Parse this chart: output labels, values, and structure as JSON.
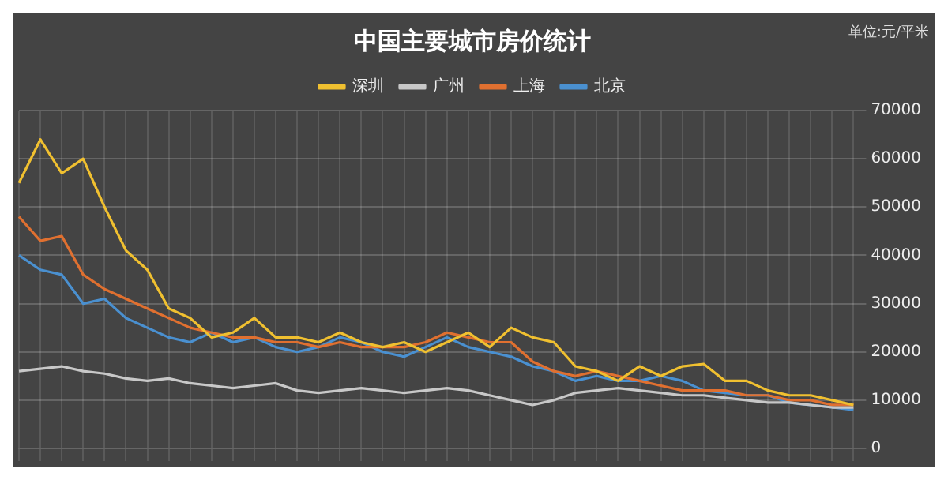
{
  "chart_data": {
    "type": "line",
    "title": "中国主要城市房价统计",
    "annotations": [
      "单位:元/平米"
    ],
    "categories": [
      null,
      null,
      null,
      null,
      null,
      null,
      null,
      null,
      null,
      null,
      null,
      null,
      null,
      null,
      null,
      null,
      null,
      null,
      null,
      null,
      null,
      null,
      null,
      null,
      null,
      null,
      null,
      null,
      null,
      null,
      null,
      null,
      null,
      null,
      null,
      null,
      null,
      null,
      null,
      null
    ],
    "series": [
      {
        "name": "深圳",
        "color": "#f0c030",
        "values": [
          55000,
          64000,
          57000,
          60000,
          50000,
          41000,
          37000,
          29000,
          27000,
          23000,
          24000,
          27000,
          23000,
          23000,
          22000,
          24000,
          22000,
          21000,
          22000,
          20000,
          22000,
          24000,
          21000,
          25000,
          23000,
          22000,
          17000,
          16000,
          14000,
          17000,
          15000,
          17000,
          17500,
          14000,
          14000,
          12000,
          11000,
          11000,
          10000,
          9000
        ]
      },
      {
        "name": "广州",
        "color": "#c8c8c8",
        "values": [
          16000,
          16500,
          17000,
          16000,
          15500,
          14500,
          14000,
          14500,
          13500,
          13000,
          12500,
          13000,
          13500,
          12000,
          11500,
          12000,
          12500,
          12000,
          11500,
          12000,
          12500,
          12000,
          11000,
          10000,
          9000,
          10000,
          11500,
          12000,
          12500,
          12000,
          11500,
          11000,
          11000,
          10500,
          10000,
          9500,
          9500,
          9000,
          8500,
          8500
        ]
      },
      {
        "name": "上海",
        "color": "#e07030",
        "values": [
          48000,
          43000,
          44000,
          36000,
          33000,
          31000,
          29000,
          27000,
          25000,
          24000,
          23000,
          23000,
          22000,
          22000,
          21000,
          22000,
          21000,
          21000,
          21000,
          22000,
          24000,
          23000,
          22000,
          22000,
          18000,
          16000,
          15000,
          16000,
          15000,
          14000,
          13000,
          12000,
          12000,
          12000,
          11000,
          11000,
          10000,
          10000,
          9000,
          9000
        ]
      },
      {
        "name": "北京",
        "color": "#4a90d0",
        "values": [
          40000,
          37000,
          36000,
          30000,
          31000,
          27000,
          25000,
          23000,
          22000,
          24000,
          22000,
          23000,
          21000,
          20000,
          21000,
          23000,
          22000,
          20000,
          19000,
          21000,
          23000,
          21000,
          20000,
          19000,
          17000,
          16000,
          14000,
          15000,
          14000,
          14000,
          15000,
          14000,
          12000,
          11500,
          11000,
          11000,
          9500,
          9000,
          8500,
          8000
        ]
      }
    ],
    "ylim": [
      0,
      70000
    ],
    "yticks": [
      0,
      10000,
      20000,
      30000,
      40000,
      50000,
      60000,
      70000
    ],
    "grid": true,
    "legend": "top",
    "marker": "none",
    "line_style": "solid"
  }
}
